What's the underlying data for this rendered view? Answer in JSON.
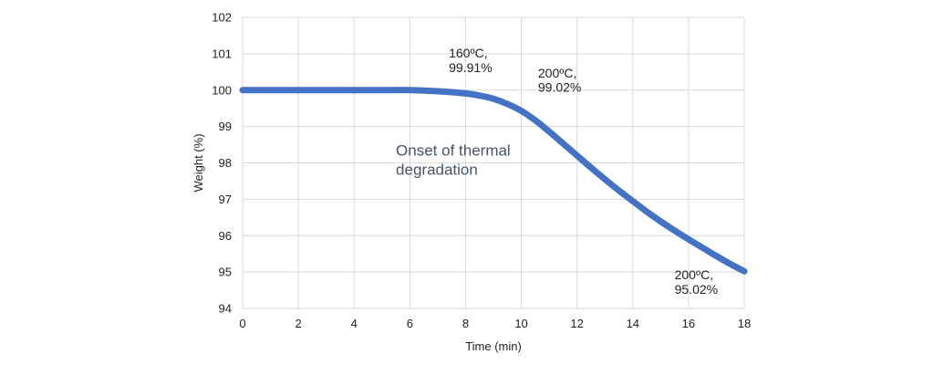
{
  "chart_data": {
    "type": "line",
    "title": "",
    "xlabel": "Time (min)",
    "ylabel": "Weight (%)",
    "xlim": [
      0,
      18
    ],
    "ylim": [
      94,
      102
    ],
    "grid": true,
    "xticks": [
      "0",
      "2",
      "4",
      "6",
      "8",
      "10",
      "12",
      "14",
      "16",
      "18"
    ],
    "yticks": [
      "94",
      "95",
      "96",
      "97",
      "98",
      "99",
      "100",
      "101",
      "102"
    ],
    "series": [
      {
        "name": "Weight",
        "color": "#4472c4",
        "x": [
          0,
          1,
          2,
          3,
          4,
          5,
          6,
          7,
          8,
          8.5,
          9,
          9.5,
          10,
          10.5,
          11,
          11.5,
          12,
          12.5,
          13,
          13.5,
          14,
          14.5,
          15,
          15.5,
          16,
          16.5,
          17,
          17.5,
          18
        ],
        "y": [
          100.0,
          100.0,
          100.0,
          100.0,
          100.0,
          100.0,
          100.0,
          99.97,
          99.91,
          99.85,
          99.76,
          99.62,
          99.43,
          99.17,
          98.86,
          98.53,
          98.2,
          97.87,
          97.55,
          97.24,
          96.95,
          96.66,
          96.39,
          96.14,
          95.9,
          95.67,
          95.44,
          95.22,
          95.02
        ]
      }
    ],
    "annotations": [
      {
        "text": "160ºC,",
        "x": 7.4,
        "y": 100.9
      },
      {
        "text": "99.91%",
        "x": 7.4,
        "y": 100.5
      },
      {
        "text": "200ºC,",
        "x": 10.6,
        "y": 100.35
      },
      {
        "text": "99.02%",
        "x": 10.6,
        "y": 99.95
      },
      {
        "text": "200ºC,",
        "x": 15.5,
        "y": 94.8
      },
      {
        "text": "95.02%",
        "x": 15.5,
        "y": 94.4
      },
      {
        "text": "Onset of thermal",
        "x": 5.5,
        "y": 98.2
      },
      {
        "text": "degradation",
        "x": 5.5,
        "y": 97.68
      }
    ]
  }
}
